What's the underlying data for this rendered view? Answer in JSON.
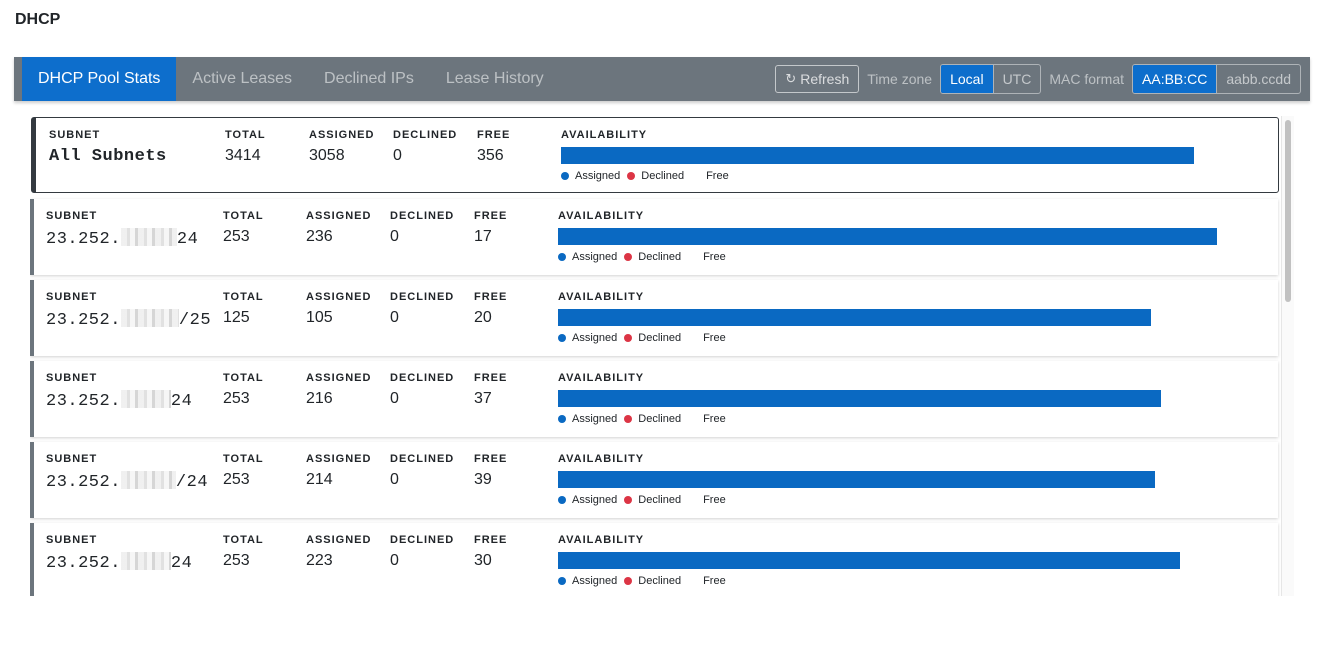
{
  "page_title": "DHCP",
  "tabs": [
    {
      "label": "DHCP Pool Stats",
      "active": true
    },
    {
      "label": "Active Leases",
      "active": false
    },
    {
      "label": "Declined IPs",
      "active": false
    },
    {
      "label": "Lease History",
      "active": false
    }
  ],
  "toolbar": {
    "refresh_label": "Refresh",
    "refresh_icon": "refresh-icon",
    "timezone_label": "Time zone",
    "timezone_options": [
      "Local",
      "UTC"
    ],
    "timezone_selected": "Local",
    "mac_label": "MAC format",
    "mac_options": [
      "AA:BB:CC",
      "aabb.ccdd"
    ],
    "mac_selected": "AA:BB:CC"
  },
  "column_labels": {
    "subnet": "SUBNET",
    "total": "TOTAL",
    "assigned": "ASSIGNED",
    "declined": "DECLINED",
    "free": "FREE",
    "availability": "AVAILABILITY"
  },
  "legend": {
    "assigned": "Assigned",
    "declined": "Declined",
    "free": "Free"
  },
  "colors": {
    "assigned": "#0a69c2",
    "declined": "#dc3545",
    "accent": "#0d6ecc",
    "toolbar": "#6c757d"
  },
  "pools": [
    {
      "subnet": "All Subnets",
      "subnet_prefix": "",
      "subnet_suffix": "",
      "redacted": false,
      "total": "3414",
      "assigned": "3058",
      "declined": "0",
      "free": "356",
      "assigned_fraction": 0.896
    },
    {
      "subnet": "",
      "subnet_prefix": "23.252.",
      "subnet_suffix": "24",
      "redacted": true,
      "total": "253",
      "assigned": "236",
      "declined": "0",
      "free": "17",
      "assigned_fraction": 0.933
    },
    {
      "subnet": "",
      "subnet_prefix": "23.252.",
      "subnet_suffix": "/25",
      "redacted": true,
      "total": "125",
      "assigned": "105",
      "declined": "0",
      "free": "20",
      "assigned_fraction": 0.84
    },
    {
      "subnet": "",
      "subnet_prefix": "23.252.",
      "subnet_suffix": "24",
      "redacted": true,
      "total": "253",
      "assigned": "216",
      "declined": "0",
      "free": "37",
      "assigned_fraction": 0.854
    },
    {
      "subnet": "",
      "subnet_prefix": "23.252.",
      "subnet_suffix": "/24",
      "redacted": true,
      "total": "253",
      "assigned": "214",
      "declined": "0",
      "free": "39",
      "assigned_fraction": 0.846
    },
    {
      "subnet": "",
      "subnet_prefix": "23.252.",
      "subnet_suffix": "24",
      "redacted": true,
      "total": "253",
      "assigned": "223",
      "declined": "0",
      "free": "30",
      "assigned_fraction": 0.881
    }
  ]
}
